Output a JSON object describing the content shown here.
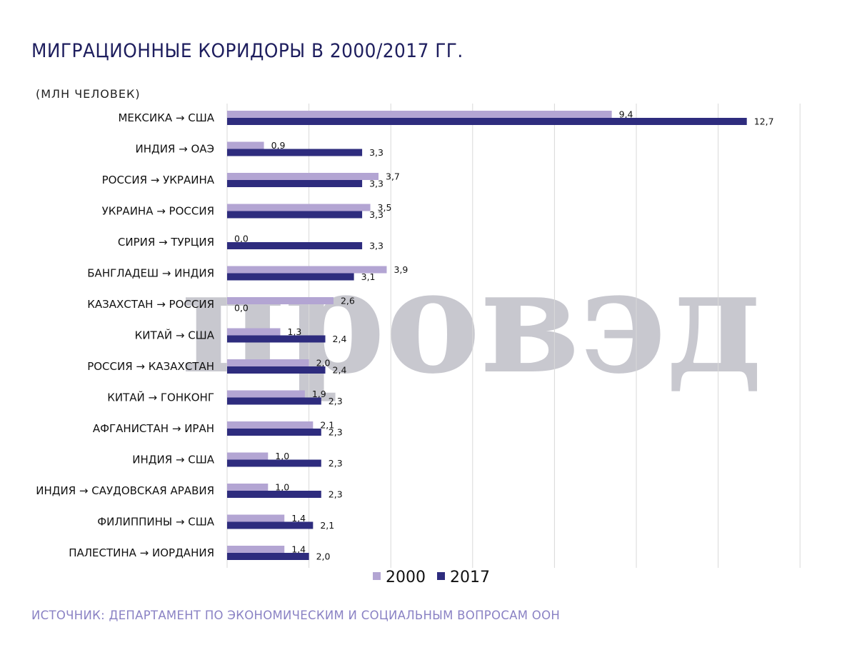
{
  "title": "МИГРАЦИОННЫЕ КОРИДОРЫ В 2000/2017 ГГ.",
  "subtitle": "(МЛН ЧЕЛОВЕК)",
  "source": "ИСТОЧНИК: ДЕПАРТАМЕНТ ПО ЭКОНОМИЧЕСКИМ И СОЦИАЛЬНЫМ ВОПРОСАМ ООН",
  "watermark": "провэд",
  "chart_data": {
    "type": "bar",
    "orientation": "horizontal",
    "categories": [
      "МЕКСИКА → США",
      "ИНДИЯ → ОАЭ",
      "РОССИЯ → УКРАИНА",
      "УКРАИНА → РОССИЯ",
      "СИРИЯ → ТУРЦИЯ",
      "БАНГЛАДЕШ → ИНДИЯ",
      "КАЗАХСТАН → РОССИЯ",
      "КИТАЙ → США",
      "РОССИЯ → КАЗАХСТАН",
      "КИТАЙ → ГОНКОНГ",
      "АФГАНИСТАН → ИРАН",
      "ИНДИЯ → США",
      "ИНДИЯ → САУДОВСКАЯ АРАВИЯ",
      "ФИЛИППИНЫ → США",
      "ПАЛЕСТИНА → ИОРДАНИЯ"
    ],
    "series": [
      {
        "name": "2000",
        "color": "#b3a5d3",
        "values": [
          9.4,
          0.9,
          3.7,
          3.5,
          0.0,
          3.9,
          2.6,
          1.3,
          2.0,
          1.9,
          2.1,
          1.0,
          1.0,
          1.4,
          1.4
        ],
        "labels": [
          "9,4",
          "0,9",
          "3,7",
          "3,5",
          "0,0",
          "3,9",
          "2,6",
          "1,3",
          "2,0",
          "1,9",
          "2,1",
          "1,0",
          "1,0",
          "1,4",
          "1,4"
        ]
      },
      {
        "name": "2017",
        "color": "#2e2c7e",
        "values": [
          12.7,
          3.3,
          3.3,
          3.3,
          3.3,
          3.1,
          0.0,
          2.4,
          2.4,
          2.3,
          2.3,
          2.3,
          2.3,
          2.1,
          2.0
        ],
        "labels": [
          "12,7",
          "3,3",
          "3,3",
          "3,3",
          "3,3",
          "3,1",
          "0,0",
          "2,4",
          "2,4",
          "2,3",
          "2,3",
          "2,3",
          "2,3",
          "2,1",
          "2,0"
        ]
      }
    ],
    "xlim": [
      0,
      14
    ],
    "grid": true,
    "legend": "bottom"
  }
}
